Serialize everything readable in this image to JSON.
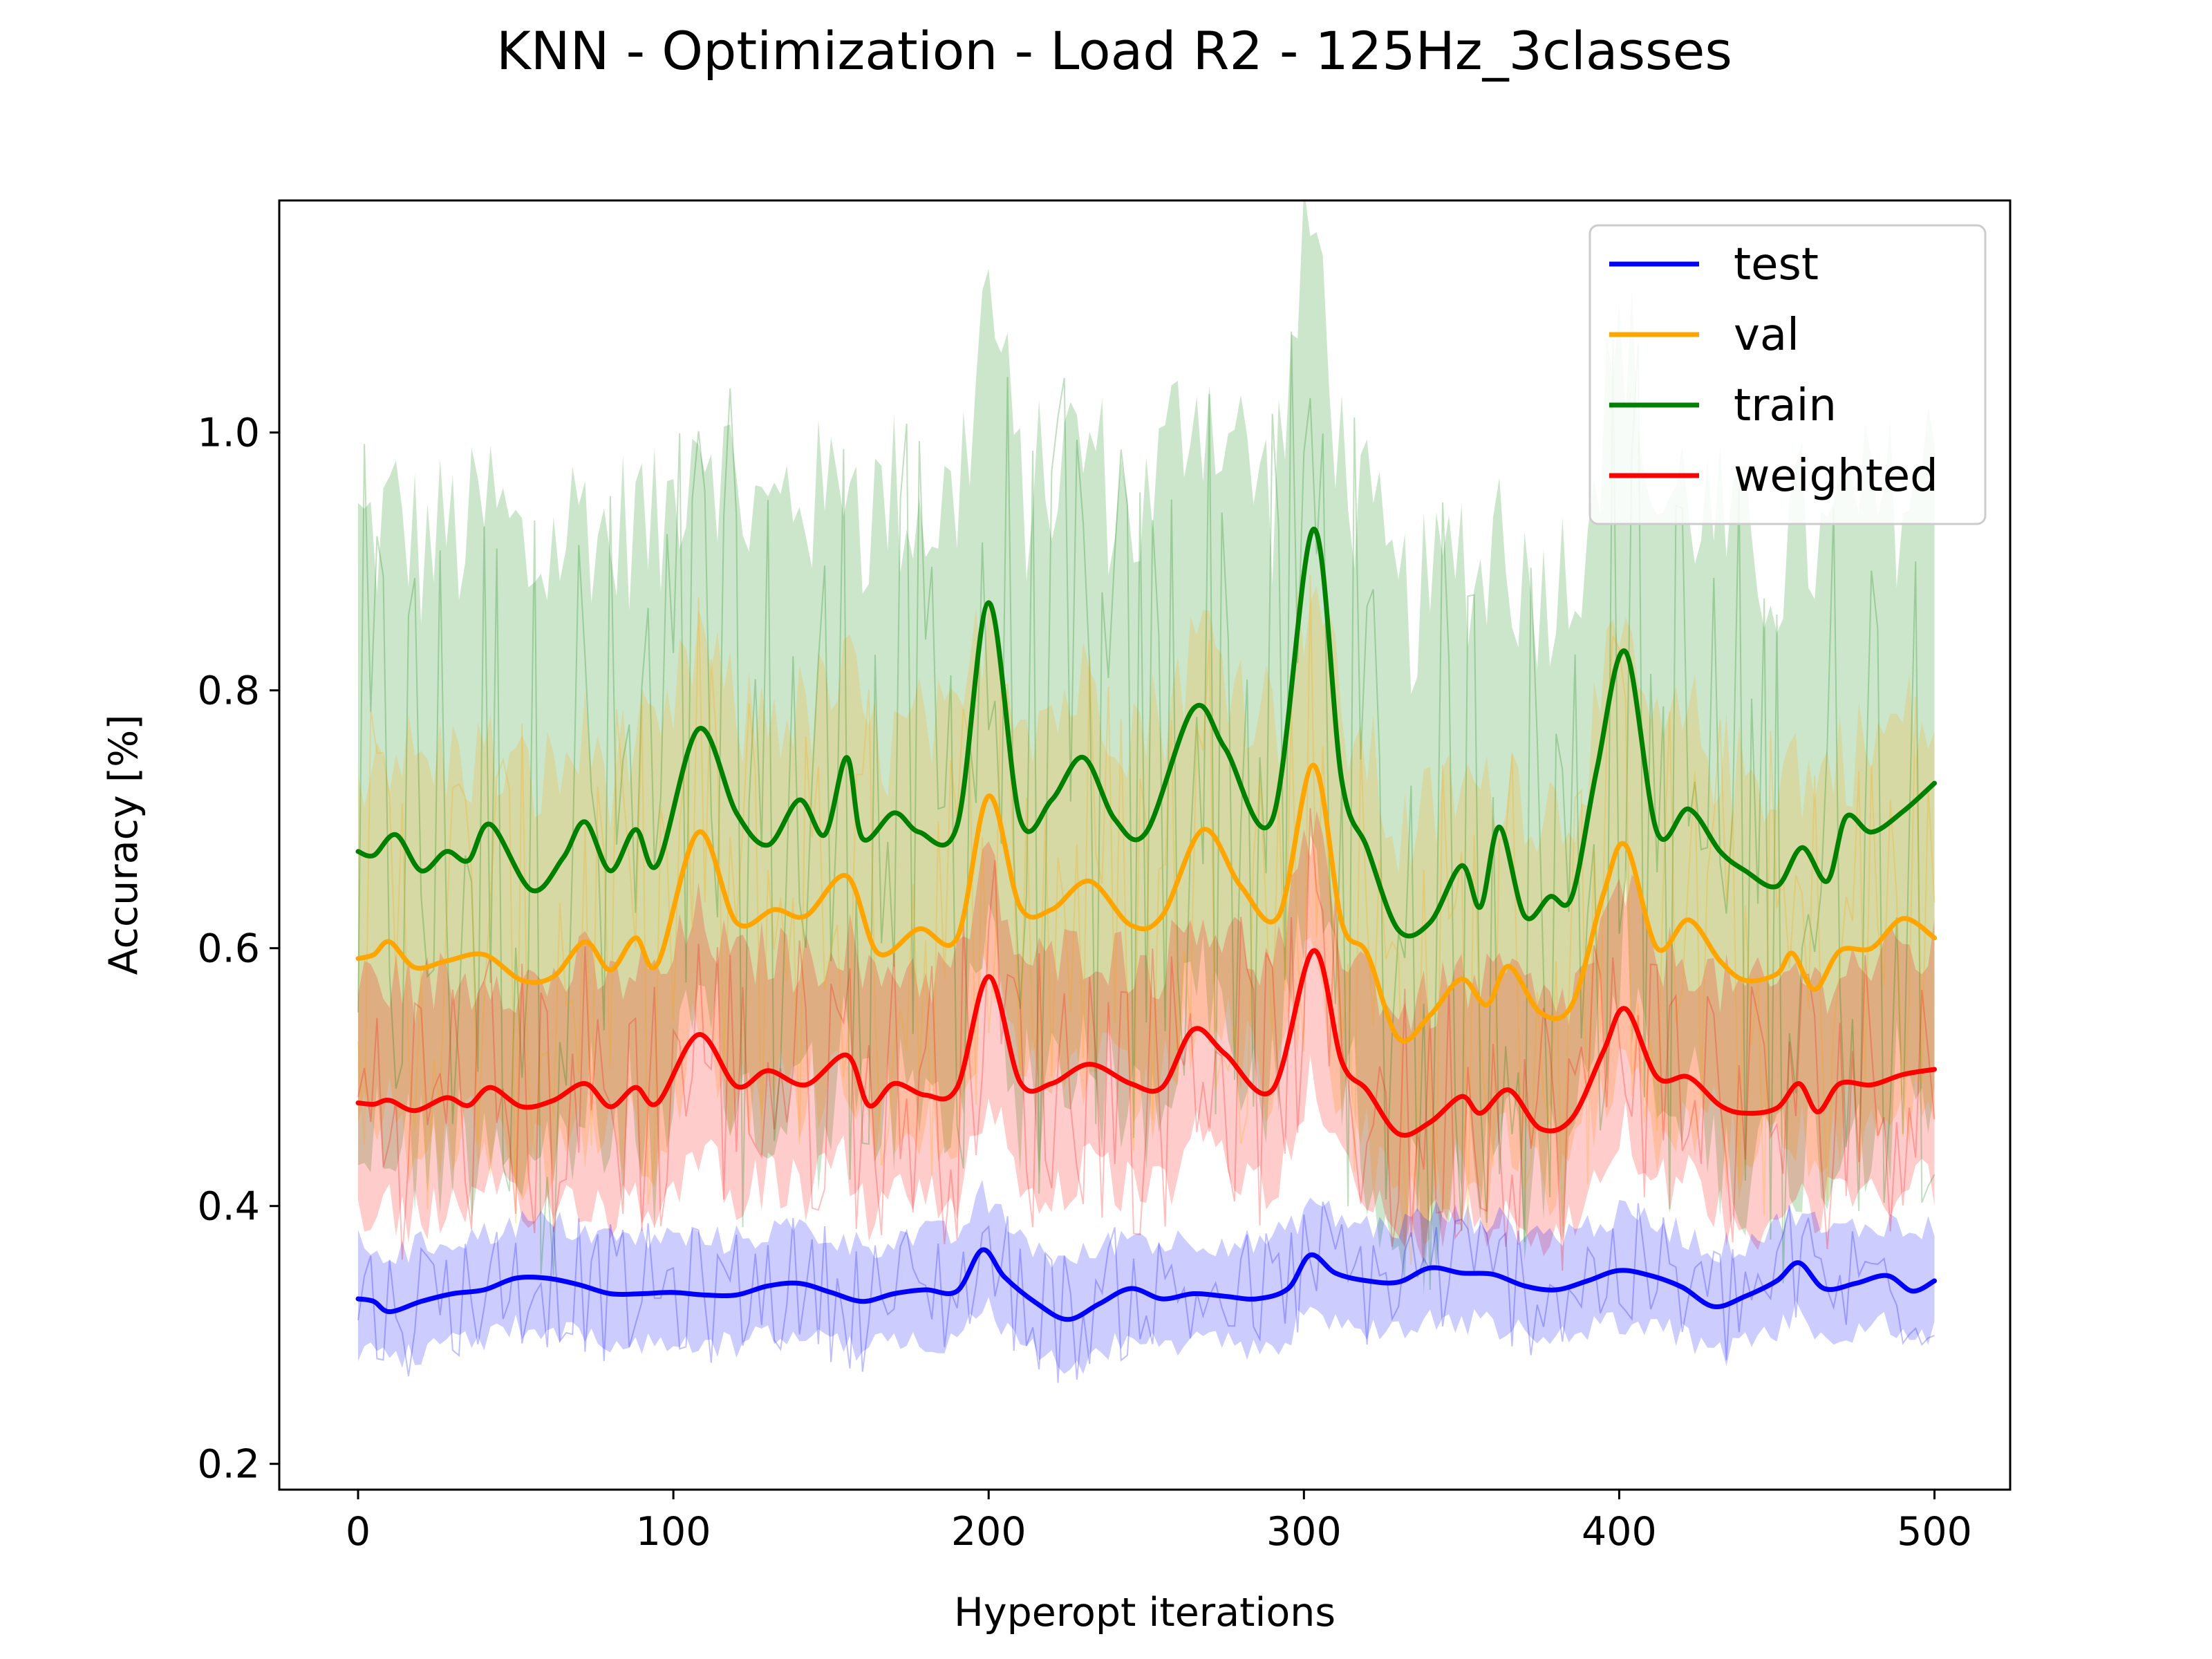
{
  "chart_data": {
    "type": "line",
    "title": "KNN - Optimization - Load R2 - 125Hz_3classes",
    "xlabel": "Hyperopt iterations",
    "ylabel": "Accuracy [%]",
    "xlim": [
      -25,
      524
    ],
    "ylim": [
      0.18,
      1.18
    ],
    "xticks": [
      0,
      100,
      200,
      300,
      400,
      500
    ],
    "xtick_labels": [
      "0",
      "100",
      "200",
      "300",
      "400",
      "500"
    ],
    "yticks": [
      0.2,
      0.4,
      0.6,
      0.8,
      1.0
    ],
    "ytick_labels": [
      "0.2",
      "0.4",
      "0.6",
      "0.8",
      "1.0"
    ],
    "grid": false,
    "legend": "upper-right",
    "series": [
      {
        "name": "test",
        "color": "#0000ff",
        "band_spread": 0.055,
        "x": [
          0,
          5,
          10,
          20,
          30,
          40,
          50,
          60,
          70,
          80,
          90,
          100,
          110,
          120,
          130,
          140,
          150,
          160,
          170,
          180,
          190,
          198,
          205,
          215,
          225,
          235,
          245,
          255,
          265,
          275,
          285,
          295,
          302,
          310,
          320,
          330,
          340,
          350,
          360,
          370,
          380,
          390,
          400,
          410,
          420,
          430,
          440,
          450,
          457,
          465,
          475,
          485,
          493,
          500
        ],
        "y": [
          0.328,
          0.326,
          0.318,
          0.326,
          0.332,
          0.335,
          0.344,
          0.344,
          0.339,
          0.332,
          0.332,
          0.333,
          0.331,
          0.331,
          0.338,
          0.34,
          0.333,
          0.326,
          0.332,
          0.335,
          0.334,
          0.366,
          0.345,
          0.325,
          0.312,
          0.324,
          0.336,
          0.328,
          0.332,
          0.33,
          0.328,
          0.336,
          0.362,
          0.348,
          0.342,
          0.341,
          0.352,
          0.348,
          0.347,
          0.338,
          0.335,
          0.342,
          0.35,
          0.346,
          0.337,
          0.322,
          0.33,
          0.342,
          0.356,
          0.336,
          0.34,
          0.346,
          0.334,
          0.342
        ]
      },
      {
        "name": "val",
        "color": "#ffa500",
        "band_spread": 0.2,
        "x": [
          0,
          5,
          10,
          18,
          28,
          40,
          52,
          62,
          72,
          80,
          88,
          95,
          108,
          120,
          132,
          142,
          155,
          165,
          178,
          190,
          200,
          210,
          220,
          232,
          245,
          255,
          268,
          280,
          292,
          303,
          312,
          320,
          330,
          340,
          350,
          358,
          365,
          375,
          385,
          395,
          402,
          412,
          422,
          432,
          440,
          450,
          455,
          462,
          470,
          480,
          490,
          500
        ],
        "y": [
          0.592,
          0.595,
          0.605,
          0.585,
          0.59,
          0.595,
          0.575,
          0.578,
          0.605,
          0.583,
          0.608,
          0.588,
          0.69,
          0.62,
          0.63,
          0.625,
          0.656,
          0.596,
          0.615,
          0.608,
          0.718,
          0.632,
          0.63,
          0.652,
          0.618,
          0.625,
          0.692,
          0.648,
          0.625,
          0.742,
          0.62,
          0.596,
          0.53,
          0.548,
          0.576,
          0.556,
          0.586,
          0.55,
          0.556,
          0.642,
          0.68,
          0.6,
          0.622,
          0.59,
          0.575,
          0.58,
          0.596,
          0.568,
          0.598,
          0.6,
          0.623,
          0.608
        ]
      },
      {
        "name": "train",
        "color": "#008000",
        "band_spread": 0.32,
        "x": [
          0,
          5,
          12,
          20,
          28,
          35,
          42,
          55,
          65,
          72,
          80,
          88,
          95,
          108,
          120,
          130,
          140,
          148,
          155,
          160,
          170,
          178,
          190,
          200,
          210,
          220,
          230,
          240,
          250,
          265,
          275,
          290,
          303,
          312,
          320,
          330,
          340,
          350,
          356,
          362,
          370,
          378,
          385,
          393,
          402,
          412,
          422,
          432,
          440,
          450,
          458,
          466,
          472,
          480,
          490,
          500
        ],
        "y": [
          0.675,
          0.672,
          0.688,
          0.66,
          0.675,
          0.668,
          0.696,
          0.645,
          0.67,
          0.698,
          0.66,
          0.692,
          0.665,
          0.77,
          0.705,
          0.68,
          0.715,
          0.688,
          0.748,
          0.685,
          0.705,
          0.69,
          0.695,
          0.868,
          0.7,
          0.715,
          0.748,
          0.7,
          0.69,
          0.786,
          0.755,
          0.7,
          0.925,
          0.73,
          0.678,
          0.614,
          0.62,
          0.664,
          0.632,
          0.694,
          0.625,
          0.64,
          0.64,
          0.74,
          0.83,
          0.69,
          0.708,
          0.675,
          0.66,
          0.648,
          0.678,
          0.652,
          0.702,
          0.69,
          0.706,
          0.728
        ]
      },
      {
        "name": "weighted",
        "color": "#ff0000",
        "band_spread": 0.12,
        "x": [
          0,
          5,
          10,
          18,
          28,
          35,
          42,
          52,
          62,
          72,
          80,
          88,
          95,
          108,
          120,
          130,
          142,
          155,
          162,
          170,
          180,
          190,
          200,
          210,
          220,
          232,
          245,
          255,
          265,
          275,
          290,
          303,
          312,
          320,
          330,
          340,
          350,
          356,
          365,
          375,
          385,
          395,
          402,
          412,
          422,
          432,
          440,
          450,
          457,
          463,
          470,
          480,
          490,
          500
        ],
        "y": [
          0.48,
          0.479,
          0.482,
          0.474,
          0.484,
          0.478,
          0.492,
          0.477,
          0.482,
          0.495,
          0.477,
          0.492,
          0.48,
          0.533,
          0.493,
          0.505,
          0.494,
          0.517,
          0.478,
          0.495,
          0.486,
          0.492,
          0.578,
          0.496,
          0.495,
          0.51,
          0.495,
          0.492,
          0.537,
          0.518,
          0.49,
          0.598,
          0.512,
          0.49,
          0.456,
          0.465,
          0.485,
          0.472,
          0.49,
          0.46,
          0.468,
          0.52,
          0.553,
          0.5,
          0.5,
          0.478,
          0.472,
          0.476,
          0.495,
          0.473,
          0.495,
          0.494,
          0.502,
          0.506
        ]
      }
    ]
  }
}
